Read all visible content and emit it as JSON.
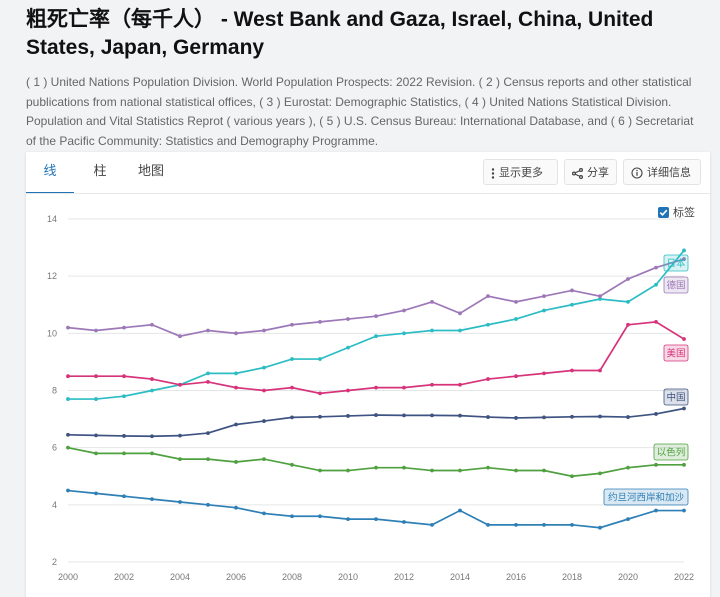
{
  "page": {
    "title": "粗死亡率（每千人） - West Bank and Gaza, Israel, China, United States, Japan, Germany",
    "sources": "( 1 ) United Nations Population Division. World Population Prospects: 2022 Revision. ( 2 ) Census reports and other statistical publications from national statistical offices, ( 3 ) Eurostat: Demographic Statistics, ( 4 ) United Nations Statistical Division. Population and Vital Statistics Reprot ( various years ), ( 5 ) U.S. Census Bureau: International Database, and ( 6 ) Secretariat of the Pacific Community: Statistics and Demography Programme."
  },
  "tabs": [
    {
      "label": "线",
      "active": true
    },
    {
      "label": "柱",
      "active": false
    },
    {
      "label": "地图",
      "active": false
    }
  ],
  "toolbar": {
    "more_label": "显示更多",
    "share_label": "分享",
    "details_label": "详细信息",
    "labels_toggle": "标签",
    "labels_checked": true
  },
  "icons": {
    "more": "vertical-dots-icon",
    "share": "share-icon",
    "details": "info-icon"
  },
  "chart_data": {
    "type": "line",
    "x": [
      2000,
      2001,
      2002,
      2003,
      2004,
      2005,
      2006,
      2007,
      2008,
      2009,
      2010,
      2011,
      2012,
      2013,
      2014,
      2015,
      2016,
      2017,
      2018,
      2019,
      2020,
      2021,
      2022
    ],
    "xticks": [
      2000,
      2002,
      2004,
      2006,
      2008,
      2010,
      2012,
      2014,
      2016,
      2018,
      2020,
      2022
    ],
    "yticks": [
      2,
      4,
      6,
      8,
      10,
      12,
      14
    ],
    "ylim": [
      2,
      14
    ],
    "grid": true,
    "series": [
      {
        "name": "日本",
        "color": "#2bbcc4",
        "values": [
          7.7,
          7.7,
          7.8,
          8.0,
          8.2,
          8.6,
          8.6,
          8.8,
          9.1,
          9.1,
          9.5,
          9.9,
          10.0,
          10.1,
          10.1,
          10.3,
          10.5,
          10.8,
          11.0,
          11.2,
          11.1,
          11.7,
          12.9
        ]
      },
      {
        "name": "德国",
        "color": "#9d78b8",
        "values": [
          10.2,
          10.1,
          10.2,
          10.3,
          9.9,
          10.1,
          10.0,
          10.1,
          10.3,
          10.4,
          10.5,
          10.6,
          10.8,
          11.1,
          10.7,
          11.3,
          11.1,
          11.3,
          11.5,
          11.3,
          11.9,
          12.3,
          12.6
        ]
      },
      {
        "name": "美国",
        "color": "#d6337a",
        "values": [
          8.5,
          8.5,
          8.5,
          8.4,
          8.2,
          8.3,
          8.1,
          8.0,
          8.1,
          7.9,
          8.0,
          8.1,
          8.1,
          8.2,
          8.2,
          8.4,
          8.5,
          8.6,
          8.7,
          8.7,
          10.3,
          10.4,
          9.8
        ]
      },
      {
        "name": "中国",
        "color": "#3e5382",
        "values": [
          6.45,
          6.43,
          6.41,
          6.4,
          6.42,
          6.51,
          6.81,
          6.93,
          7.06,
          7.08,
          7.11,
          7.14,
          7.13,
          7.13,
          7.12,
          7.07,
          7.04,
          7.06,
          7.08,
          7.09,
          7.07,
          7.18,
          7.37
        ]
      },
      {
        "name": "以色列",
        "color": "#4fa03f",
        "values": [
          6.0,
          5.8,
          5.8,
          5.8,
          5.6,
          5.6,
          5.5,
          5.6,
          5.4,
          5.2,
          5.2,
          5.3,
          5.3,
          5.2,
          5.2,
          5.3,
          5.2,
          5.2,
          5.0,
          5.1,
          5.3,
          5.4,
          5.4
        ]
      },
      {
        "name": "约旦河西岸和加沙",
        "color": "#2d7fb6",
        "values": [
          4.5,
          4.4,
          4.3,
          4.2,
          4.1,
          4.0,
          3.9,
          3.7,
          3.6,
          3.6,
          3.5,
          3.5,
          3.4,
          3.3,
          3.8,
          3.3,
          3.3,
          3.3,
          3.3,
          3.2,
          3.5,
          3.8,
          3.8
        ]
      }
    ]
  }
}
